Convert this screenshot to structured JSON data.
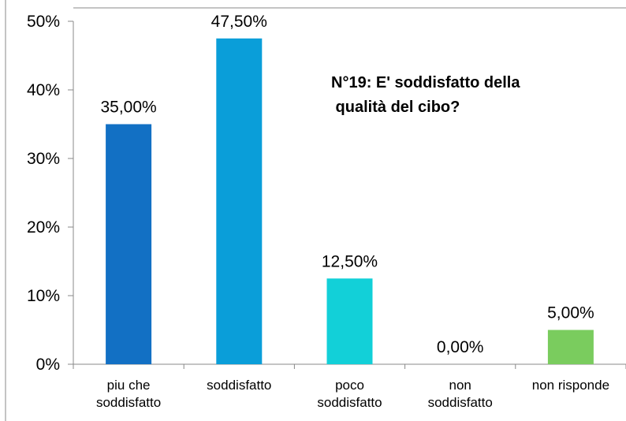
{
  "chart_data": {
    "type": "bar",
    "title": [
      "N°19: E' soddisfatto della",
      " qualità del cibo?"
    ],
    "categories": [
      [
        "piu che",
        "soddisfatto"
      ],
      [
        "soddisfatto"
      ],
      [
        "poco",
        "soddisfatto"
      ],
      [
        "non",
        "soddisfatto"
      ],
      [
        "non risponde"
      ]
    ],
    "values": [
      35.0,
      47.5,
      12.5,
      0.0,
      5.0
    ],
    "data_labels": [
      "35,00%",
      "47,50%",
      "12,50%",
      "0,00%",
      "5,00%"
    ],
    "bar_colors": [
      "#1270C4",
      "#0A9ED9",
      "#12D0D8",
      "#12D0D8",
      "#7ACC5E"
    ],
    "ylim": [
      0,
      50
    ],
    "yticks": [
      0,
      10,
      20,
      30,
      40,
      50
    ],
    "ytick_labels": [
      "0%",
      "10%",
      "20%",
      "30%",
      "40%",
      "50%"
    ],
    "xlabel": "",
    "ylabel": "",
    "grid": false,
    "legend": "none"
  }
}
